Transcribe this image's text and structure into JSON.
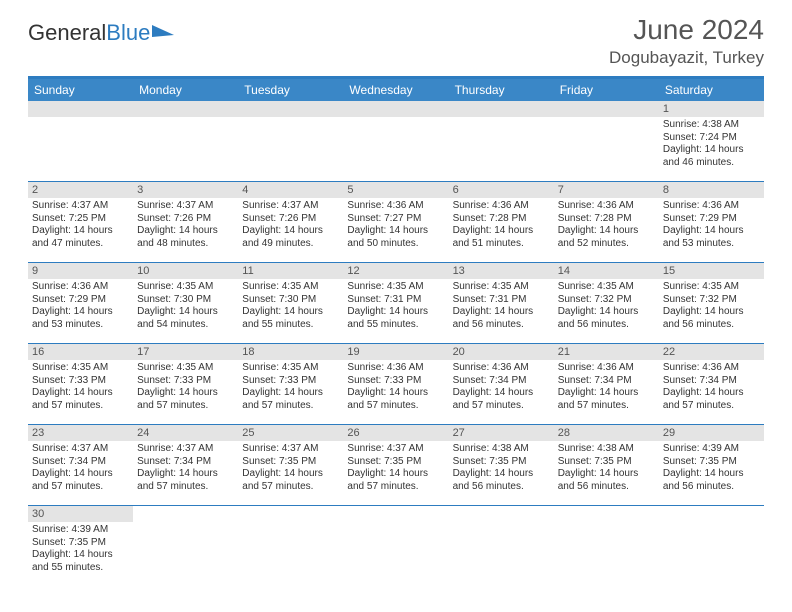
{
  "logo": {
    "part1": "General",
    "part2": "Blue"
  },
  "title": "June 2024",
  "location": "Dogubayazit, Turkey",
  "colors": {
    "header_bg": "#3a87c7",
    "border": "#2d7cc0",
    "daynum_bg": "#e4e4e4",
    "text": "#333333",
    "title_text": "#555555"
  },
  "typography": {
    "title_fontsize": 28,
    "location_fontsize": 17,
    "dayhead_fontsize": 12,
    "cell_fontsize": 10
  },
  "day_headers": [
    "Sunday",
    "Monday",
    "Tuesday",
    "Wednesday",
    "Thursday",
    "Friday",
    "Saturday"
  ],
  "weeks": [
    [
      null,
      null,
      null,
      null,
      null,
      null,
      {
        "n": "1",
        "sr": "4:38 AM",
        "ss": "7:24 PM",
        "dl": "14 hours and 46 minutes."
      }
    ],
    [
      {
        "n": "2",
        "sr": "4:37 AM",
        "ss": "7:25 PM",
        "dl": "14 hours and 47 minutes."
      },
      {
        "n": "3",
        "sr": "4:37 AM",
        "ss": "7:26 PM",
        "dl": "14 hours and 48 minutes."
      },
      {
        "n": "4",
        "sr": "4:37 AM",
        "ss": "7:26 PM",
        "dl": "14 hours and 49 minutes."
      },
      {
        "n": "5",
        "sr": "4:36 AM",
        "ss": "7:27 PM",
        "dl": "14 hours and 50 minutes."
      },
      {
        "n": "6",
        "sr": "4:36 AM",
        "ss": "7:28 PM",
        "dl": "14 hours and 51 minutes."
      },
      {
        "n": "7",
        "sr": "4:36 AM",
        "ss": "7:28 PM",
        "dl": "14 hours and 52 minutes."
      },
      {
        "n": "8",
        "sr": "4:36 AM",
        "ss": "7:29 PM",
        "dl": "14 hours and 53 minutes."
      }
    ],
    [
      {
        "n": "9",
        "sr": "4:36 AM",
        "ss": "7:29 PM",
        "dl": "14 hours and 53 minutes."
      },
      {
        "n": "10",
        "sr": "4:35 AM",
        "ss": "7:30 PM",
        "dl": "14 hours and 54 minutes."
      },
      {
        "n": "11",
        "sr": "4:35 AM",
        "ss": "7:30 PM",
        "dl": "14 hours and 55 minutes."
      },
      {
        "n": "12",
        "sr": "4:35 AM",
        "ss": "7:31 PM",
        "dl": "14 hours and 55 minutes."
      },
      {
        "n": "13",
        "sr": "4:35 AM",
        "ss": "7:31 PM",
        "dl": "14 hours and 56 minutes."
      },
      {
        "n": "14",
        "sr": "4:35 AM",
        "ss": "7:32 PM",
        "dl": "14 hours and 56 minutes."
      },
      {
        "n": "15",
        "sr": "4:35 AM",
        "ss": "7:32 PM",
        "dl": "14 hours and 56 minutes."
      }
    ],
    [
      {
        "n": "16",
        "sr": "4:35 AM",
        "ss": "7:33 PM",
        "dl": "14 hours and 57 minutes."
      },
      {
        "n": "17",
        "sr": "4:35 AM",
        "ss": "7:33 PM",
        "dl": "14 hours and 57 minutes."
      },
      {
        "n": "18",
        "sr": "4:35 AM",
        "ss": "7:33 PM",
        "dl": "14 hours and 57 minutes."
      },
      {
        "n": "19",
        "sr": "4:36 AM",
        "ss": "7:33 PM",
        "dl": "14 hours and 57 minutes."
      },
      {
        "n": "20",
        "sr": "4:36 AM",
        "ss": "7:34 PM",
        "dl": "14 hours and 57 minutes."
      },
      {
        "n": "21",
        "sr": "4:36 AM",
        "ss": "7:34 PM",
        "dl": "14 hours and 57 minutes."
      },
      {
        "n": "22",
        "sr": "4:36 AM",
        "ss": "7:34 PM",
        "dl": "14 hours and 57 minutes."
      }
    ],
    [
      {
        "n": "23",
        "sr": "4:37 AM",
        "ss": "7:34 PM",
        "dl": "14 hours and 57 minutes."
      },
      {
        "n": "24",
        "sr": "4:37 AM",
        "ss": "7:34 PM",
        "dl": "14 hours and 57 minutes."
      },
      {
        "n": "25",
        "sr": "4:37 AM",
        "ss": "7:35 PM",
        "dl": "14 hours and 57 minutes."
      },
      {
        "n": "26",
        "sr": "4:37 AM",
        "ss": "7:35 PM",
        "dl": "14 hours and 57 minutes."
      },
      {
        "n": "27",
        "sr": "4:38 AM",
        "ss": "7:35 PM",
        "dl": "14 hours and 56 minutes."
      },
      {
        "n": "28",
        "sr": "4:38 AM",
        "ss": "7:35 PM",
        "dl": "14 hours and 56 minutes."
      },
      {
        "n": "29",
        "sr": "4:39 AM",
        "ss": "7:35 PM",
        "dl": "14 hours and 56 minutes."
      }
    ],
    [
      {
        "n": "30",
        "sr": "4:39 AM",
        "ss": "7:35 PM",
        "dl": "14 hours and 55 minutes."
      },
      null,
      null,
      null,
      null,
      null,
      null
    ]
  ],
  "labels": {
    "sunrise": "Sunrise:",
    "sunset": "Sunset:",
    "daylight": "Daylight:"
  }
}
